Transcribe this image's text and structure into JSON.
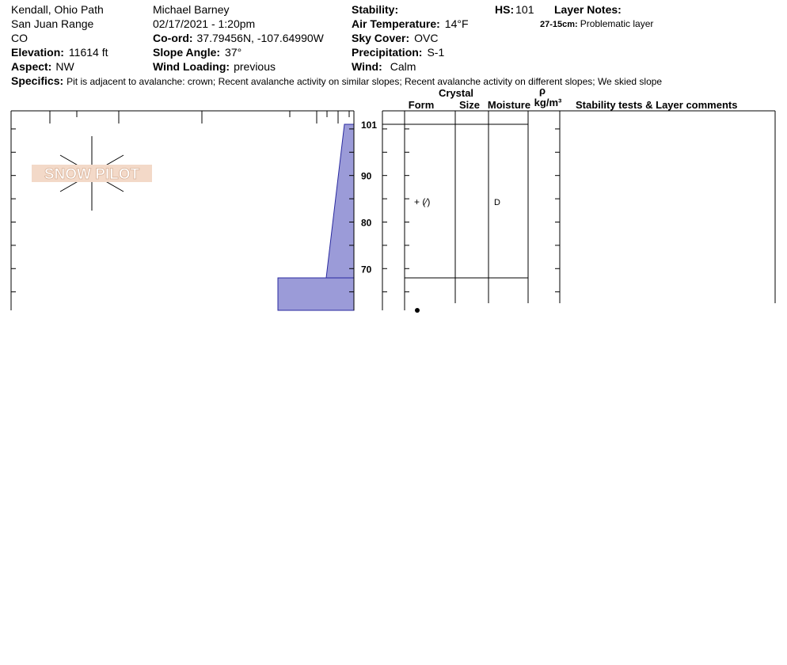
{
  "header": {
    "location": "Kendall, Ohio Path",
    "range": "San Juan Range",
    "state": "CO",
    "elevation": {
      "label": "Elevation:",
      "value": "11614 ft"
    },
    "aspect": {
      "label": "Aspect:",
      "value": "NW"
    },
    "observer": "Michael Barney",
    "datetime": "02/17/2021 - 1:20pm",
    "coord": {
      "label": "Co-ord:",
      "value": "37.79456N, -107.64990W"
    },
    "slope_angle": {
      "label": "Slope Angle:",
      "value": "37°"
    },
    "wind_loading": {
      "label": "Wind Loading:",
      "value": "previous"
    },
    "stability": {
      "label": "Stability:"
    },
    "air_temperature": {
      "label": "Air Temperature:",
      "value": "14°F"
    },
    "sky_cover": {
      "label": "Sky Cover:",
      "value": "OVC"
    },
    "precipitation": {
      "label": "Precipitation:",
      "value": "S-1"
    },
    "wind": {
      "label": "Wind:",
      "value": "Calm"
    },
    "hs": {
      "label": "HS:",
      "value": "101"
    },
    "layer_notes": {
      "label": "Layer Notes:",
      "range": "27-15cm:",
      "text": "Problematic layer"
    },
    "specifics": {
      "label": "Specifics:",
      "text": "Pit is adjacent to avalanche: crown; Recent avalanche activity on similar slopes; Recent avalanche activity on different slopes; We skied slope"
    }
  },
  "logo": "SNOW PILOT",
  "depth_labels": [
    101,
    90,
    80,
    70
  ],
  "columns": {
    "crystal": "Crystal",
    "form": "Form",
    "size": "Size",
    "moisture": "Moisture",
    "rho": "ρ",
    "density_unit": "kg/m³",
    "comments": "Stability tests & Layer comments"
  },
  "layer": {
    "form": "+ (⁄)",
    "moisture": "D"
  }
}
